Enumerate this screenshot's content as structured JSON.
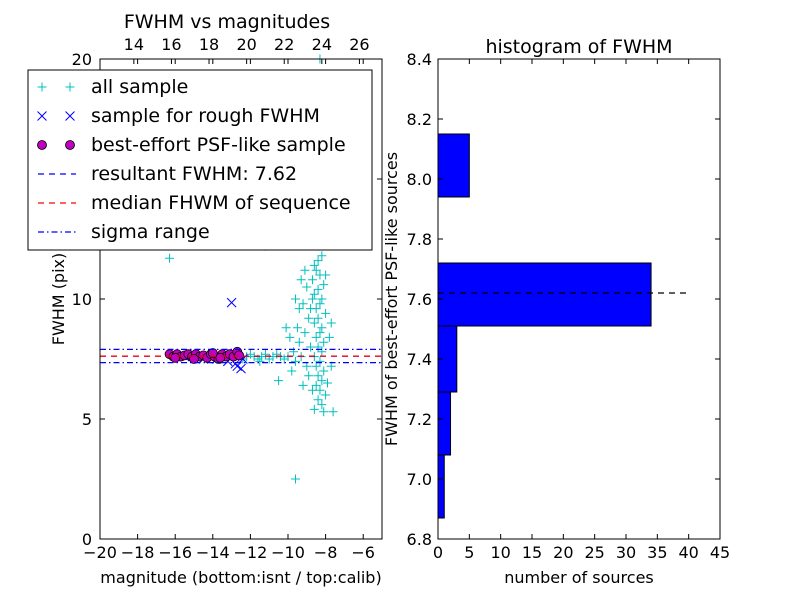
{
  "chart_data": [
    {
      "type": "scatter",
      "title": "FWHM vs magnitudes",
      "xlabel": "magnitude (bottom:isnt / top:calib)",
      "ylabel": "FWHM (pix)",
      "xlim": [
        -20,
        -5
      ],
      "ylim": [
        0,
        20
      ],
      "x_ticks": [
        -20,
        -18,
        -16,
        -14,
        -12,
        -10,
        -8,
        -6
      ],
      "x_tick_labels": [
        "−20",
        "−18",
        "−16",
        "−14",
        "−12",
        "−10",
        "−8",
        "−6"
      ],
      "y_ticks": [
        0,
        5,
        10,
        15,
        20
      ],
      "y_tick_labels": [
        "0",
        "5",
        "10",
        "15",
        "20"
      ],
      "top_axis": {
        "ticks": [
          14,
          16,
          18,
          20,
          22,
          24,
          26
        ],
        "tick_labels": [
          "14",
          "16",
          "18",
          "20",
          "22",
          "24",
          "26"
        ],
        "offset": 32.2
      },
      "legend": {
        "placement": "top-left",
        "entries": [
          {
            "label": "all sample",
            "marker": "plus",
            "color": "#00bfbf"
          },
          {
            "label": "sample for rough FWHM",
            "marker": "x",
            "color": "#0000ff"
          },
          {
            "label": "best-effort PSF-like sample",
            "marker": "circle",
            "color": "#bf00bf"
          },
          {
            "label": "resultant FWHM: 7.62",
            "line": "dashed",
            "color": "#0000ff"
          },
          {
            "label": "median FHWM of sequence",
            "line": "dashed",
            "color": "#ff0000"
          },
          {
            "label": "sigma range",
            "line": "dashdot",
            "color": "#0000ff"
          }
        ]
      },
      "series": [
        {
          "name": "all sample",
          "marker": "plus",
          "color": "#00bfbf",
          "points": [
            [
              -16.3,
              11.7
            ],
            [
              -9.6,
              2.5
            ],
            [
              -8.3,
              20.0
            ],
            [
              -8.6,
              11.4
            ],
            [
              -8.4,
              11.6
            ],
            [
              -8.2,
              11.8
            ],
            [
              -8.5,
              11.2
            ],
            [
              -8.3,
              11.0
            ],
            [
              -8.7,
              10.8
            ],
            [
              -8.1,
              10.6
            ],
            [
              -8.4,
              10.4
            ],
            [
              -8.6,
              10.2
            ],
            [
              -8.2,
              10.0
            ],
            [
              -8.3,
              9.8
            ],
            [
              -8.5,
              9.6
            ],
            [
              -8.0,
              9.4
            ],
            [
              -8.4,
              9.2
            ],
            [
              -8.6,
              9.0
            ],
            [
              -8.2,
              8.8
            ],
            [
              -8.3,
              8.6
            ],
            [
              -8.5,
              8.4
            ],
            [
              -8.1,
              8.2
            ],
            [
              -8.4,
              8.0
            ],
            [
              -8.2,
              7.8
            ],
            [
              -8.6,
              7.6
            ],
            [
              -8.3,
              7.4
            ],
            [
              -8.5,
              7.2
            ],
            [
              -8.1,
              7.0
            ],
            [
              -8.4,
              6.8
            ],
            [
              -8.2,
              6.6
            ],
            [
              -8.5,
              6.4
            ],
            [
              -8.3,
              6.2
            ],
            [
              -8.0,
              6.0
            ],
            [
              -8.4,
              5.8
            ],
            [
              -8.2,
              5.6
            ],
            [
              -8.6,
              5.4
            ],
            [
              -8.1,
              5.3
            ],
            [
              -7.6,
              5.3
            ],
            [
              -9.0,
              10.5
            ],
            [
              -9.2,
              9.8
            ],
            [
              -8.9,
              9.2
            ],
            [
              -9.1,
              8.6
            ],
            [
              -8.8,
              8.0
            ],
            [
              -9.3,
              7.6
            ],
            [
              -9.0,
              7.2
            ],
            [
              -8.9,
              6.8
            ],
            [
              -9.2,
              6.4
            ],
            [
              -8.7,
              6.2
            ],
            [
              -9.5,
              8.8
            ],
            [
              -9.4,
              8.2
            ],
            [
              -9.7,
              7.8
            ],
            [
              -9.6,
              7.4
            ],
            [
              -9.8,
              7.0
            ],
            [
              -10.0,
              7.6
            ],
            [
              -10.2,
              7.5
            ],
            [
              -10.4,
              7.6
            ],
            [
              -10.6,
              7.7
            ],
            [
              -10.8,
              7.6
            ],
            [
              -11.0,
              7.5
            ],
            [
              -11.2,
              7.7
            ],
            [
              -11.4,
              7.6
            ],
            [
              -11.6,
              7.5
            ],
            [
              -11.8,
              7.6
            ],
            [
              -12.0,
              7.7
            ],
            [
              -12.2,
              7.6
            ],
            [
              -12.4,
              7.5
            ],
            [
              -10.5,
              6.6
            ],
            [
              -11.5,
              7.4
            ],
            [
              -9.9,
              8.4
            ],
            [
              -8.8,
              9.6
            ],
            [
              -8.7,
              10.0
            ],
            [
              -9.1,
              11.2
            ],
            [
              -9.3,
              10.8
            ],
            [
              -10.3,
              12.4
            ],
            [
              -11.7,
              12.6
            ],
            [
              -11.2,
              12.2
            ],
            [
              -10.9,
              12.8
            ],
            [
              -7.9,
              6.5
            ],
            [
              -7.7,
              7.2
            ],
            [
              -7.8,
              8.4
            ],
            [
              -7.7,
              9.0
            ],
            [
              -8.0,
              11.0
            ],
            [
              -9.6,
              10.0
            ],
            [
              -10.1,
              8.8
            ],
            [
              -9.4,
              9.6
            ]
          ]
        },
        {
          "name": "sample for rough FWHM",
          "marker": "x",
          "color": "#0000ff",
          "points": [
            [
              -13.0,
              9.85
            ],
            [
              -12.7,
              7.2
            ],
            [
              -12.5,
              7.1
            ],
            [
              -12.8,
              7.3
            ],
            [
              -13.2,
              7.4
            ],
            [
              -14.5,
              7.5
            ],
            [
              -15.5,
              7.6
            ],
            [
              -13.8,
              7.5
            ],
            [
              -15.0,
              7.7
            ],
            [
              -14.2,
              7.6
            ],
            [
              -12.4,
              7.5
            ]
          ]
        },
        {
          "name": "best-effort PSF-like sample",
          "marker": "circle",
          "color": "#bf00bf",
          "points": [
            [
              -16.3,
              7.7
            ],
            [
              -16.1,
              7.6
            ],
            [
              -15.9,
              7.7
            ],
            [
              -15.7,
              7.6
            ],
            [
              -15.5,
              7.65
            ],
            [
              -15.3,
              7.7
            ],
            [
              -15.1,
              7.6
            ],
            [
              -14.9,
              7.7
            ],
            [
              -14.7,
              7.6
            ],
            [
              -14.5,
              7.65
            ],
            [
              -14.3,
              7.55
            ],
            [
              -14.1,
              7.7
            ],
            [
              -13.9,
              7.6
            ],
            [
              -13.7,
              7.5
            ],
            [
              -13.5,
              7.7
            ],
            [
              -13.3,
              7.6
            ],
            [
              -13.1,
              7.7
            ],
            [
              -12.9,
              7.6
            ],
            [
              -12.7,
              7.8
            ],
            [
              -12.6,
              7.65
            ],
            [
              -16.0,
              7.55
            ],
            [
              -15.0,
              7.5
            ],
            [
              -14.0,
              7.75
            ],
            [
              -13.6,
              7.55
            ]
          ]
        }
      ],
      "hlines": [
        {
          "name": "resultant FWHM",
          "y": 7.62,
          "color": "#0000ff",
          "style": "dashed"
        },
        {
          "name": "median FHWM of sequence",
          "y": 7.62,
          "color": "#ff0000",
          "style": "dashed"
        },
        {
          "name": "sigma range upper",
          "y": 7.9,
          "color": "#0000ff",
          "style": "dashdot"
        },
        {
          "name": "sigma range lower",
          "y": 7.35,
          "color": "#0000ff",
          "style": "dashdot"
        }
      ]
    },
    {
      "type": "bar",
      "orientation": "horizontal",
      "title": "histogram of FWHM",
      "xlabel": "number of sources",
      "ylabel": "FWHM of best-effort PSF-like sources",
      "xlim": [
        0,
        45
      ],
      "ylim": [
        6.8,
        8.4
      ],
      "x_ticks": [
        0,
        5,
        10,
        15,
        20,
        25,
        30,
        35,
        40,
        45
      ],
      "x_tick_labels": [
        "0",
        "5",
        "10",
        "15",
        "20",
        "25",
        "30",
        "35",
        "40",
        "45"
      ],
      "y_ticks": [
        6.8,
        7.0,
        7.2,
        7.4,
        7.6,
        7.8,
        8.0,
        8.2,
        8.4
      ],
      "y_tick_labels": [
        "6.8",
        "7.0",
        "7.2",
        "7.4",
        "7.6",
        "7.8",
        "8.0",
        "8.2",
        "8.4"
      ],
      "color": "#0000ff",
      "bins": [
        {
          "low": 6.87,
          "high": 7.08,
          "count": 1
        },
        {
          "low": 7.08,
          "high": 7.29,
          "count": 2
        },
        {
          "low": 7.29,
          "high": 7.51,
          "count": 3
        },
        {
          "low": 7.51,
          "high": 7.72,
          "count": 34
        },
        {
          "low": 7.72,
          "high": 7.94,
          "count": 0
        },
        {
          "low": 7.94,
          "high": 8.15,
          "count": 5
        }
      ],
      "hline": {
        "y": 7.62,
        "color": "#000000",
        "style": "dashed",
        "xmax": 40
      }
    }
  ]
}
